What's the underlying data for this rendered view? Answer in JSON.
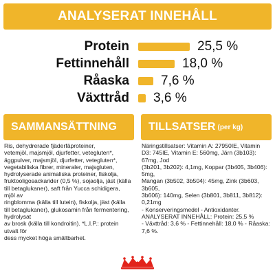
{
  "banner": {
    "title": "ANALYSERAT INNEHÅLL"
  },
  "analysis": [
    {
      "label": "Protein",
      "value": "25,5 %",
      "level": 25.5
    },
    {
      "label": "Fettinnehåll",
      "value": "18,0 %",
      "level": 18.0
    },
    {
      "label": "Råaska",
      "value": "7,6 %",
      "level": 7.6
    },
    {
      "label": "Växttråd",
      "value": "3,6 %",
      "level": 3.6
    }
  ],
  "sections": {
    "composition": {
      "title": "SAMMANSÄTTNING",
      "lines": [
        "Ris, dehydrerade fjäderfäproteiner,",
        "vetemjöl, majsmjöl, djurfetter, vetegluten*,",
        "äggpulver, majsmjöl, djurfetter, vetegluten*,",
        "vegetabiliska fibrer, mineraler, majsgluten,",
        "hydrolyserade animaliska proteiner, fiskolja,",
        "fruktooligosackarider (0,5 %), sojaolja, jäst (källa",
        "till betaglukaner), saft från Yucca schidigera, mjöl av",
        "ringblomma (källa till lutein), fiskolja, jäst (källa",
        "till betaglukaner), glukosamin från fermentering, hydrolysat",
        "av brosk (källa till kondroitin). *L.I.P.: protein utvalt för",
        "dess mycket höga smältbarhet."
      ]
    },
    "additives": {
      "title": "TILLSATSER",
      "subtitle": "(per kg)",
      "lines": [
        "Näringstillsatser: Vitamin A: 27950IE, Vitamin",
        "D3: 745IE, Vitamin E: 560mg, Järn (3b103): 67mg, Jod",
        "(3b201, 3b202): 4,1mg, Koppar (3b405, 3b406): 5mg,",
        "Mangan (3b502, 3b504): 45mg, Zink (3b603, 3b605,",
        "3b606): 140mg, Selen (3b801, 3b811, 3b812): 0,21mg",
        "- Konserveringsmedel - Antioxidanter.",
        "ANALYSERAT INNEHÅLL: Protein: 25,5 %",
        "- Växttråd: 3,6 % - Fettinnehåll: 18,0 % - Råaska: 7,6 %."
      ]
    }
  },
  "colors": {
    "accent": "#f0b52a",
    "brand_red": "#e2231a"
  },
  "logo": {
    "icon": "royal-crown-logo"
  }
}
